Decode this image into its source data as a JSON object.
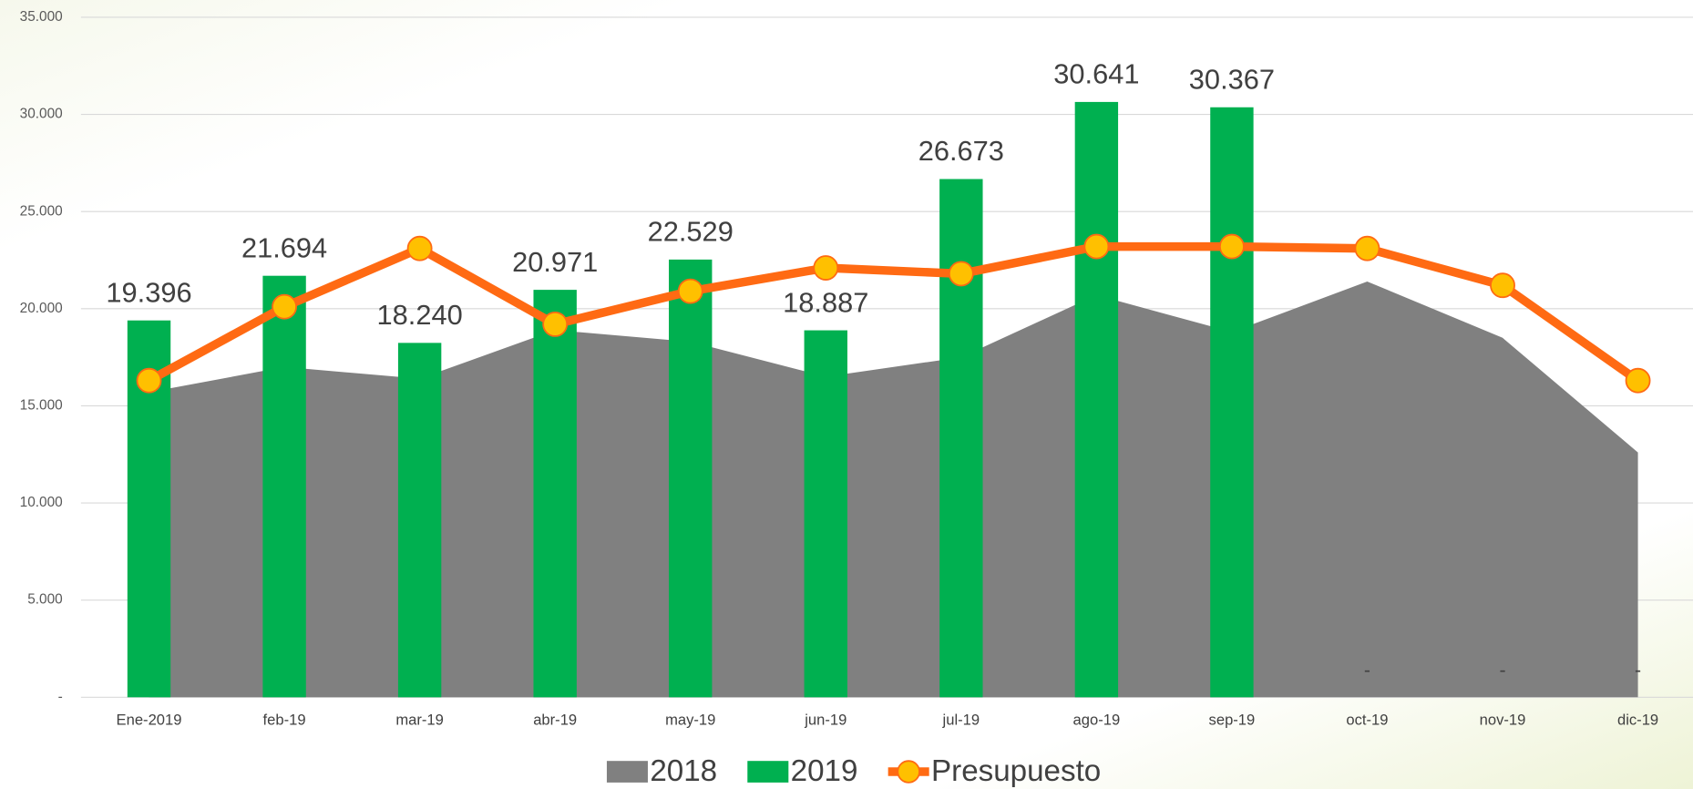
{
  "chart_data": {
    "type": "combo",
    "categories": [
      "Ene-2019",
      "feb-19",
      "mar-19",
      "abr-19",
      "may-19",
      "jun-19",
      "jul-19",
      "ago-19",
      "sep-19",
      "oct-19",
      "nov-19",
      "dic-19"
    ],
    "series": [
      {
        "name": "2018",
        "kind": "area",
        "color": "#808080",
        "values": [
          15700,
          17000,
          16400,
          18900,
          18300,
          16500,
          17500,
          20700,
          18800,
          21400,
          18500,
          12600
        ]
      },
      {
        "name": "2019",
        "kind": "bar",
        "color": "#00b050",
        "values": [
          19396,
          21694,
          18240,
          20971,
          22529,
          18887,
          26673,
          30641,
          30367,
          0,
          0,
          0
        ],
        "value_labels": [
          "19.396",
          "21.694",
          "18.240",
          "20.971",
          "22.529",
          "18.887",
          "26.673",
          "30.641",
          "30.367",
          "-",
          "-",
          "-"
        ]
      },
      {
        "name": "Presupuesto",
        "kind": "line",
        "color": "#ff6a13",
        "marker_color": "#ffc000",
        "values": [
          16300,
          20100,
          23100,
          19200,
          20900,
          22100,
          21800,
          23200,
          23200,
          23100,
          21200,
          16300
        ]
      }
    ],
    "ylim": [
      0,
      35000
    ],
    "yticks": [
      {
        "value": 0,
        "label": "-"
      },
      {
        "value": 5000,
        "label": "5.000"
      },
      {
        "value": 10000,
        "label": "10.000"
      },
      {
        "value": 15000,
        "label": "15.000"
      },
      {
        "value": 20000,
        "label": "20.000"
      },
      {
        "value": 25000,
        "label": "25.000"
      },
      {
        "value": 30000,
        "label": "30.000"
      },
      {
        "value": 35000,
        "label": "35.000"
      }
    ],
    "grid": true,
    "legend": "bottom"
  }
}
